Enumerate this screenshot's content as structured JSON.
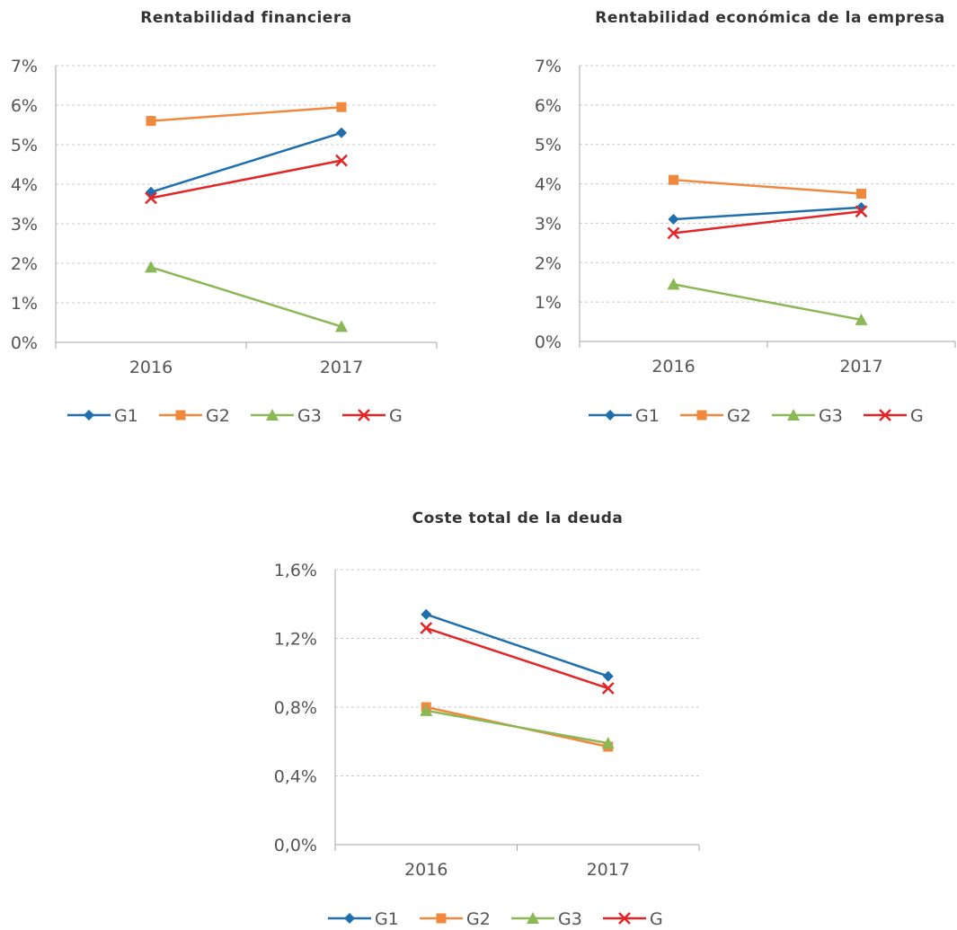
{
  "chart_data": [
    {
      "type": "line",
      "title": "Rentabilidad financiera",
      "categories": [
        "2016",
        "2017"
      ],
      "ylim": [
        0,
        7
      ],
      "yticks": [
        0,
        1,
        2,
        3,
        4,
        5,
        6,
        7
      ],
      "ytick_labels": [
        "0%",
        "1%",
        "2%",
        "3%",
        "4%",
        "5%",
        "6%",
        "7%"
      ],
      "grid": true,
      "legend_position": "bottom",
      "series": [
        {
          "name": "G1",
          "values": [
            3.8,
            5.3
          ],
          "color": "#1F6FAE",
          "marker": "diamond"
        },
        {
          "name": "G2",
          "values": [
            5.6,
            5.95
          ],
          "color": "#F0883E",
          "marker": "square"
        },
        {
          "name": "G3",
          "values": [
            1.9,
            0.4
          ],
          "color": "#8BB857",
          "marker": "triangle"
        },
        {
          "name": "G",
          "values": [
            3.65,
            4.6
          ],
          "color": "#E42527",
          "marker": "x"
        }
      ]
    },
    {
      "type": "line",
      "title": "Rentabilidad económica de la empresa",
      "categories": [
        "2016",
        "2017"
      ],
      "ylim": [
        0,
        7
      ],
      "yticks": [
        0,
        1,
        2,
        3,
        4,
        5,
        6,
        7
      ],
      "ytick_labels": [
        "0%",
        "1%",
        "2%",
        "3%",
        "4%",
        "5%",
        "6%",
        "7%"
      ],
      "grid": true,
      "legend_position": "bottom",
      "series": [
        {
          "name": "G1",
          "values": [
            3.1,
            3.4
          ],
          "color": "#1F6FAE",
          "marker": "diamond"
        },
        {
          "name": "G2",
          "values": [
            4.1,
            3.75
          ],
          "color": "#F0883E",
          "marker": "square"
        },
        {
          "name": "G3",
          "values": [
            1.45,
            0.55
          ],
          "color": "#8BB857",
          "marker": "triangle"
        },
        {
          "name": "G",
          "values": [
            2.75,
            3.3
          ],
          "color": "#E42527",
          "marker": "x"
        }
      ]
    },
    {
      "type": "line",
      "title": "Coste total de la deuda",
      "categories": [
        "2016",
        "2017"
      ],
      "ylim": [
        0,
        1.6
      ],
      "yticks": [
        0,
        0.4,
        0.8,
        1.2,
        1.6
      ],
      "ytick_labels": [
        "0,0%",
        "0,4%",
        "0,8%",
        "1,2%",
        "1,6%"
      ],
      "grid": true,
      "legend_position": "bottom",
      "series": [
        {
          "name": "G1",
          "values": [
            1.34,
            0.98
          ],
          "color": "#1F6FAE",
          "marker": "diamond"
        },
        {
          "name": "G2",
          "values": [
            0.8,
            0.57
          ],
          "color": "#F0883E",
          "marker": "square"
        },
        {
          "name": "G3",
          "values": [
            0.78,
            0.59
          ],
          "color": "#8BB857",
          "marker": "triangle"
        },
        {
          "name": "G",
          "values": [
            1.26,
            0.91
          ],
          "color": "#E42527",
          "marker": "x"
        }
      ]
    }
  ]
}
